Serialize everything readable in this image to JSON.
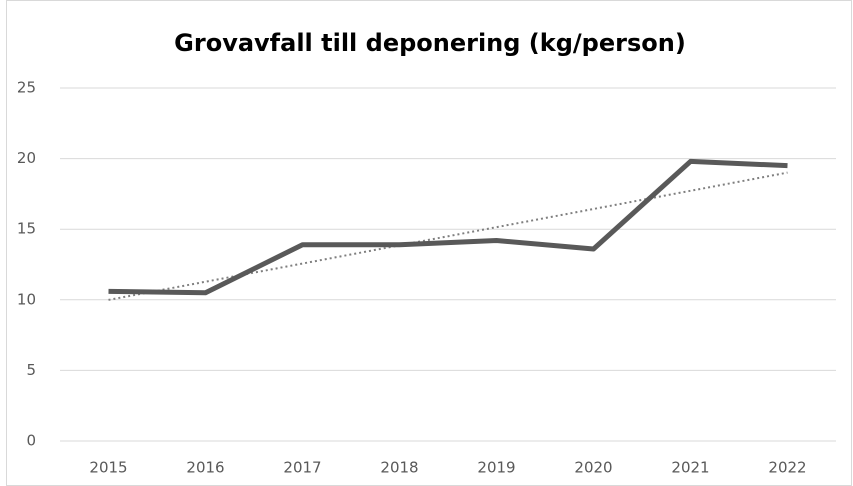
{
  "chart_data": {
    "type": "line",
    "title": "Grovavfall till deponering (kg/person)",
    "categories": [
      "2015",
      "2016",
      "2017",
      "2018",
      "2019",
      "2020",
      "2021",
      "2022"
    ],
    "values": [
      10.6,
      10.5,
      13.9,
      13.9,
      14.2,
      13.6,
      19.8,
      19.5
    ],
    "color": "#595959",
    "trendline": "linear",
    "trendline_color": "#7f7f7f",
    "ylim": [
      0,
      25
    ],
    "yticks": [
      0,
      5,
      10,
      15,
      20,
      25
    ],
    "grid": true
  }
}
